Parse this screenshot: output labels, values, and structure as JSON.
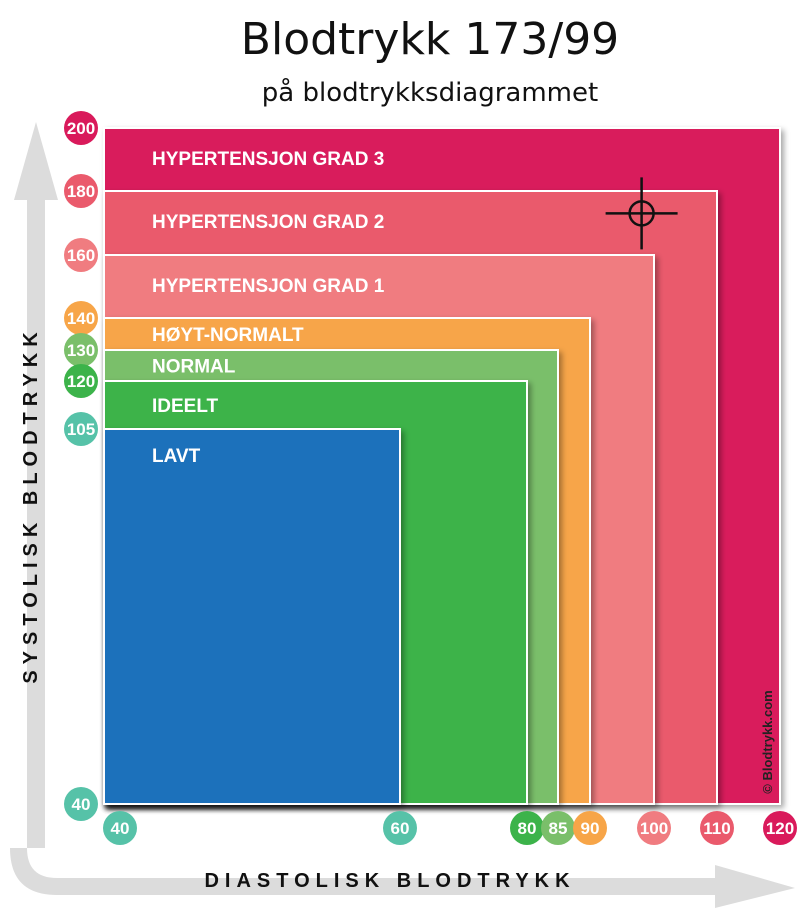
{
  "page": {
    "title": "Blodtrykk 173/99",
    "subtitle": "på blodtrykksdiagrammet"
  },
  "chart_data": {
    "type": "area",
    "title": "Blodtrykk 173/99",
    "subtitle": "på blodtrykksdiagrammet",
    "xlabel": "DIASTOLISK BLODTRYKK",
    "ylabel": "SYSTOLISK BLODTRYKK",
    "xlim": [
      40,
      120
    ],
    "ylim": [
      40,
      200
    ],
    "zones": [
      {
        "label": "HYPERTENSJON GRAD 3",
        "x_max": 120,
        "y_max": 200,
        "color": "#d91a5b"
      },
      {
        "label": "HYPERTENSJON GRAD 2",
        "x_max": 110,
        "y_max": 180,
        "color": "#ea5a6c"
      },
      {
        "label": "HYPERTENSJON GRAD 1",
        "x_max": 100,
        "y_max": 160,
        "color": "#f07c80"
      },
      {
        "label": "HØYT-NORMALT",
        "x_max": 90,
        "y_max": 140,
        "color": "#f7a548"
      },
      {
        "label": "NORMAL",
        "x_max": 85,
        "y_max": 130,
        "color": "#7abf6a"
      },
      {
        "label": "IDEELT",
        "x_max": 80,
        "y_max": 120,
        "color": "#3cb34a"
      },
      {
        "label": "LAVT",
        "x_max": 60,
        "y_max": 105,
        "color": "#1c71bb"
      }
    ],
    "x_ticks": [
      {
        "value": 40,
        "label": "40",
        "color": "#56c2a8"
      },
      {
        "value": 60,
        "label": "60",
        "color": "#56c2a8"
      },
      {
        "value": 80,
        "label": "80",
        "color": "#3cb34a"
      },
      {
        "value": 85,
        "label": "85",
        "color": "#7abf6a"
      },
      {
        "value": 90,
        "label": "90",
        "color": "#f7a548"
      },
      {
        "value": 100,
        "label": "100",
        "color": "#f07c80"
      },
      {
        "value": 110,
        "label": "110",
        "color": "#ea5a6c"
      },
      {
        "value": 120,
        "label": "120",
        "color": "#d91a5b"
      }
    ],
    "y_ticks": [
      {
        "value": 200,
        "label": "200",
        "color": "#d91a5b"
      },
      {
        "value": 180,
        "label": "180",
        "color": "#ea5a6c"
      },
      {
        "value": 160,
        "label": "160",
        "color": "#f07c80"
      },
      {
        "value": 140,
        "label": "140",
        "color": "#f7a548"
      },
      {
        "value": 130,
        "label": "130",
        "color": "#7abf6a"
      },
      {
        "value": 120,
        "label": "120",
        "color": "#3cb34a"
      },
      {
        "value": 105,
        "label": "105",
        "color": "#56c2a8"
      },
      {
        "value": 40,
        "label": "40",
        "color": "#56c2a8"
      }
    ],
    "marker": {
      "systolic": 173,
      "diastolic": 99,
      "icon": "crosshair-icon"
    },
    "credit": "© Blodtrykk.com"
  }
}
